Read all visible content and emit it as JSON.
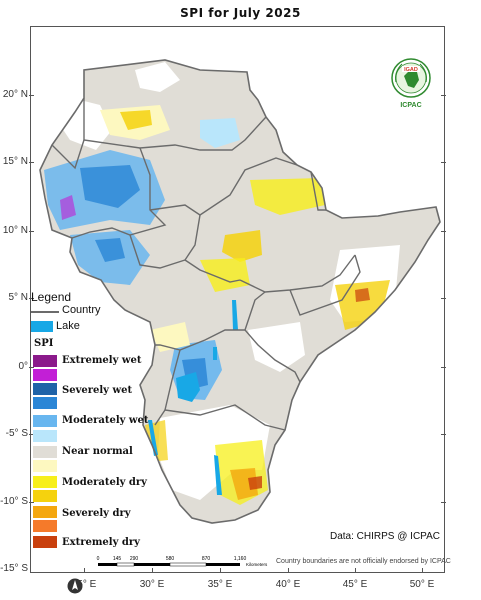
{
  "title": "SPI  for  July 2025",
  "logo": {
    "top_text": "IGAD",
    "bottom_text": "ICPAC"
  },
  "latitude_labels": [
    "20° N",
    "15° N",
    "10° N",
    "5° N",
    "0°",
    "-5° S",
    "-10° S",
    "-15° S"
  ],
  "longitude_labels": [
    "25° E",
    "30° E",
    "35° E",
    "40° E",
    "45° E",
    "50° E"
  ],
  "legend": {
    "title": "Legend",
    "country_label": "Country",
    "lake_label": "Lake",
    "spi_title": "SPI",
    "classes": [
      {
        "label": "Extremely wet",
        "colors": [
          "#8b1a8b",
          "#c21fd6"
        ]
      },
      {
        "label": "Severely wet",
        "colors": [
          "#1f63a8",
          "#2b86d6"
        ]
      },
      {
        "label": "Moderately wet",
        "colors": [
          "#68b6ef",
          "#b9e6fb"
        ]
      },
      {
        "label": "Near normal",
        "colors": [
          "#e0ddd6",
          "#fdf8c0"
        ]
      },
      {
        "label": "Moderately dry",
        "colors": [
          "#f7ef1a",
          "#f5d20e"
        ]
      },
      {
        "label": "Severely dry",
        "colors": [
          "#f4a70f",
          "#f57a2a"
        ]
      },
      {
        "label": "Extremely dry",
        "colors": [
          "#c9400d"
        ]
      }
    ]
  },
  "scale_bar": {
    "ticks": [
      "0",
      "145",
      "290",
      "580",
      "870",
      "1,160"
    ],
    "unit": "Kilometers"
  },
  "credit": "Data: CHIRPS @ ICPAC",
  "disclaimer": "Country boundaries are not officially endorsed by ICPAC",
  "colors": {
    "near_normal": "#e0ddd6",
    "lake": "#18a8e6",
    "border": "#6b6b6b"
  }
}
